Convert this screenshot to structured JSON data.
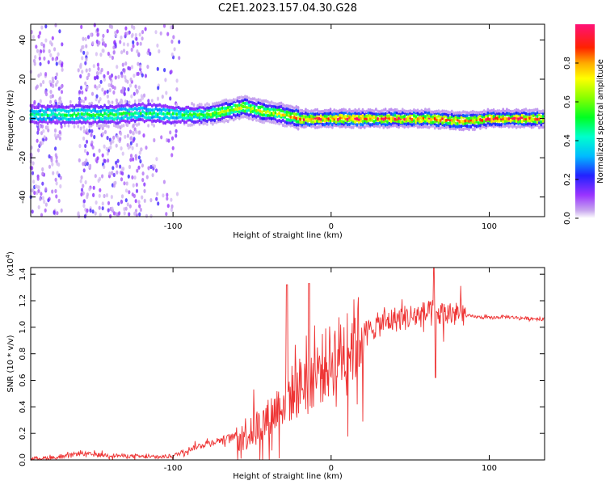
{
  "title": "C2E1.2023.157.04.30.G28",
  "chart_data": [
    {
      "type": "heatmap",
      "name": "spectrogram",
      "xlabel": "Height of straight line (km)",
      "ylabel": "Frequency (Hz)",
      "xlim": [
        -190,
        135
      ],
      "ylim": [
        -50,
        48
      ],
      "xticks": [
        -100,
        0,
        100
      ],
      "yticks": [
        -40,
        -20,
        0,
        20,
        40
      ],
      "colorbar": {
        "label": "Normalized spectral amplitude",
        "range": [
          0.0,
          1.0
        ],
        "ticks": [
          0.0,
          0.2,
          0.4,
          0.6,
          0.8
        ],
        "tick_labels": [
          "0.0",
          "0.2",
          "0.4",
          "0.6",
          "0.8"
        ]
      },
      "ridge": {
        "description": "carrier near 0 Hz",
        "x": [
          -190,
          -160,
          -140,
          -120,
          -100,
          -80,
          -65,
          -55,
          -45,
          -30,
          -20,
          -10,
          0,
          20,
          40,
          60,
          80,
          90,
          100,
          120,
          135
        ],
        "freq": [
          2,
          2,
          2,
          3,
          2,
          2,
          4,
          6,
          4,
          2,
          0,
          0,
          0,
          0,
          0,
          0,
          -1,
          -1,
          0,
          0,
          0
        ],
        "peak_amplitude": [
          0.45,
          0.5,
          0.55,
          0.5,
          0.5,
          0.6,
          0.7,
          0.75,
          0.7,
          0.72,
          0.85,
          0.95,
          0.95,
          0.95,
          0.9,
          0.9,
          0.85,
          0.9,
          0.95,
          0.9,
          0.85
        ]
      }
    },
    {
      "type": "line",
      "name": "snr",
      "xlabel": "Height of straight line (km)",
      "ylabel": "SNR (10 * v/v)",
      "y_scale_label": "(x10",
      "y_scale_exponent": "4",
      "y_scale_close": ")",
      "xlim": [
        -190,
        135
      ],
      "ylim": [
        0,
        1.45
      ],
      "xticks": [
        -100,
        0,
        100
      ],
      "yticks": [
        0.0,
        0.2,
        0.4,
        0.6,
        0.8,
        1.0,
        1.2,
        1.4
      ],
      "ytick_labels": [
        "0.0",
        "0.2",
        "0.4",
        "0.6",
        "0.8",
        "1.0",
        "1.2",
        "1.4"
      ],
      "color": "#ee3333",
      "series": [
        {
          "name": "SNR",
          "x": [
            -190,
            -170,
            -160,
            -150,
            -130,
            -110,
            -100,
            -90,
            -80,
            -70,
            -60,
            -50,
            -40,
            -35,
            -30,
            -25,
            -20,
            -15,
            -10,
            -5,
            0,
            10,
            20,
            30,
            40,
            50,
            60,
            65,
            70,
            80,
            90,
            100,
            110,
            120,
            135
          ],
          "values": [
            0.01,
            0.02,
            0.05,
            0.04,
            0.03,
            0.02,
            0.03,
            0.08,
            0.12,
            0.15,
            0.18,
            0.22,
            0.3,
            0.38,
            0.45,
            0.5,
            0.55,
            0.62,
            0.65,
            0.7,
            0.75,
            0.85,
            0.95,
            1.02,
            1.06,
            1.08,
            1.1,
            1.1,
            1.1,
            1.1,
            1.08,
            1.07,
            1.08,
            1.07,
            1.06
          ]
        }
      ],
      "annotations": [
        {
          "x": -28,
          "value": 1.32,
          "note": "spike"
        },
        {
          "x": -14,
          "value": 1.33,
          "note": "spike"
        },
        {
          "x": 65,
          "value": 1.45,
          "note": "spike"
        },
        {
          "x": 66,
          "value": 0.62,
          "note": "dip"
        }
      ]
    }
  ]
}
